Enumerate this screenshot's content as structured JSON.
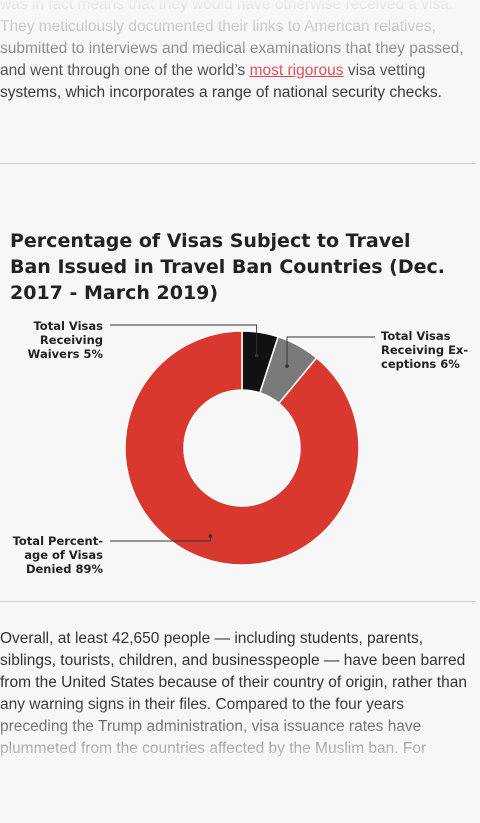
{
  "article": {
    "para_top_before_link": "was in fact means that they would have otherwise received a visa. They meticulously documented their links to American relatives, submitted to interviews and medical examinations that they passed, and went through one of the world’s ",
    "para_top_link": "most rigorous",
    "para_top_after_link": " visa vetting systems, which incorporates a range of national security checks.",
    "para_bottom": "Overall, at least 42,650 people — including students, parents, siblings, tourists, children, and businesspeople — have been barred from the United States because of their country of origin, rather than any warning signs in their files. Compared to the four years preceding the Trump administration, visa issuance rates have plummeted from the countries affected by the Muslim ban. For"
  },
  "chart_data": {
    "type": "pie",
    "title": "Percentage of Visas Subject to Travel Ban Issued in Travel Ban Countries (Dec. 2017 - March 2019)",
    "slices": [
      {
        "label_lines": [
          "Total Visas",
          "Receiving",
          "Waivers 5%"
        ],
        "value": 5,
        "color": "#111111"
      },
      {
        "label_lines": [
          "Total Visas",
          "Receiving Ex-",
          "ceptions 6%"
        ],
        "value": 6,
        "color": "#7a7a7a"
      },
      {
        "label_lines": [
          "Total Percent-",
          "age of Visas",
          "Denied 89%"
        ],
        "value": 89,
        "color": "#d9382e"
      }
    ]
  }
}
